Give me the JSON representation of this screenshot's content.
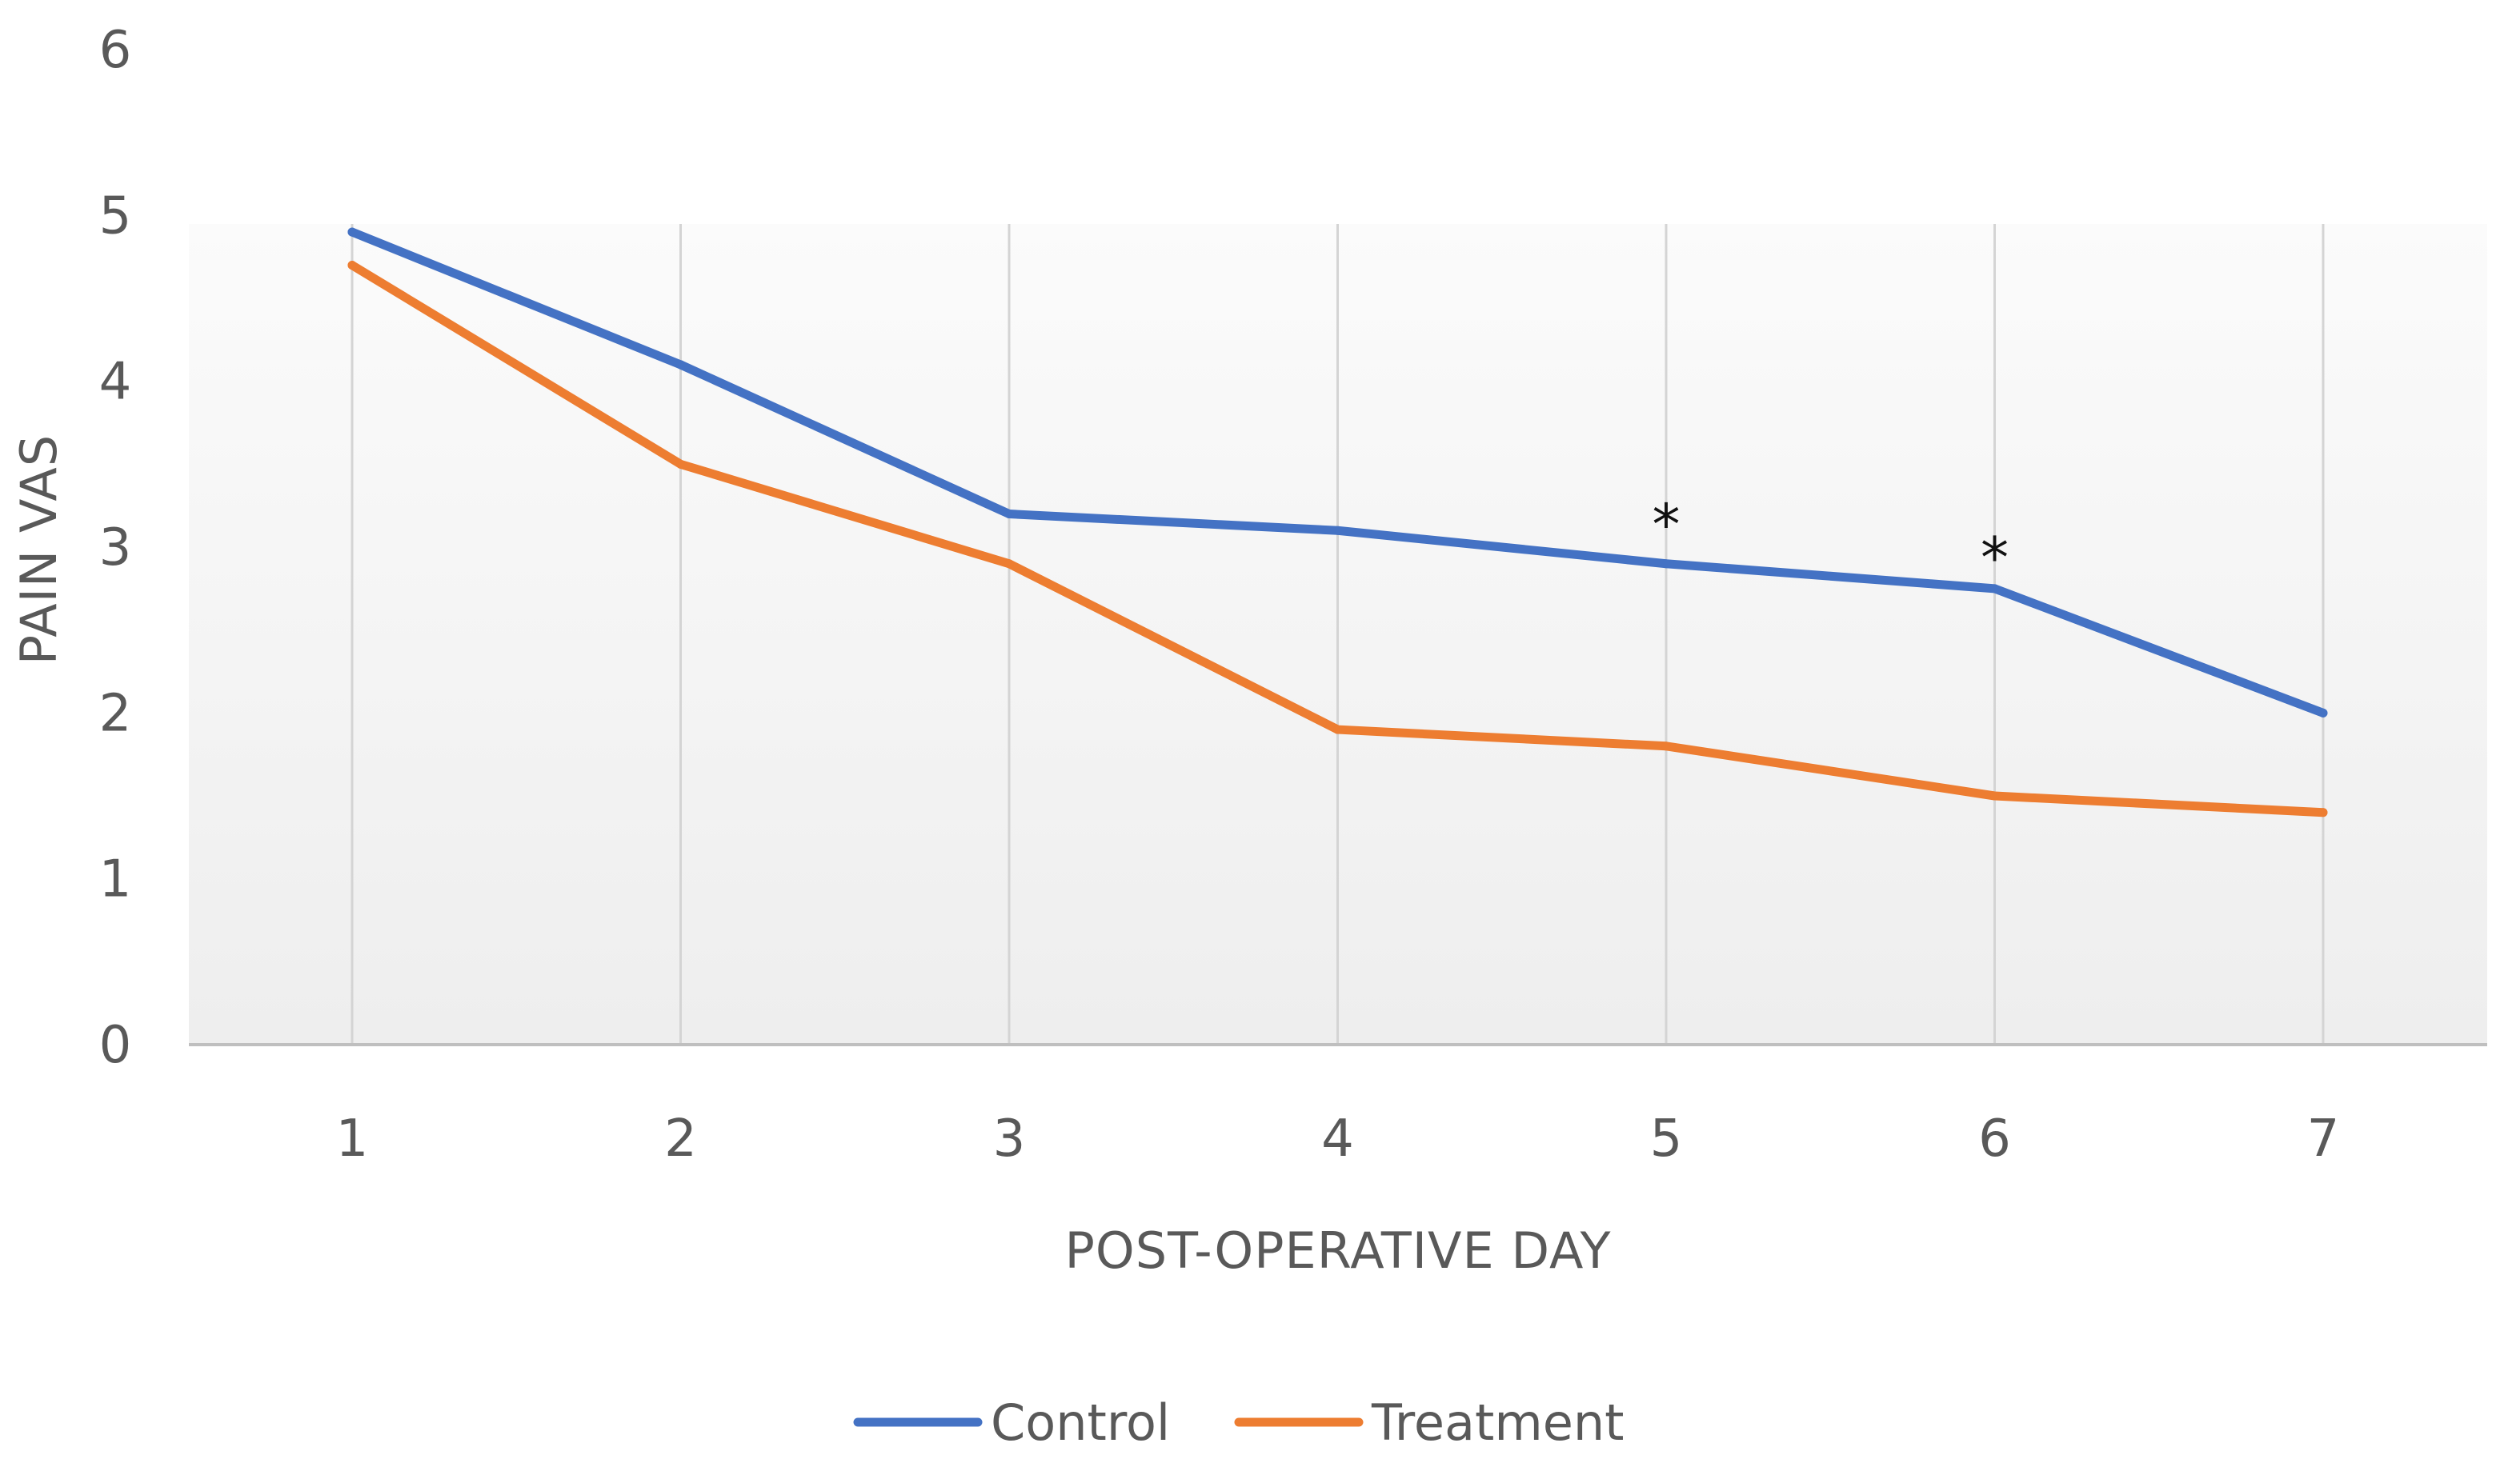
{
  "chart_data": {
    "type": "line",
    "title": "",
    "xlabel": "POST-OPERATIVE DAY",
    "ylabel": "PAIN VAS",
    "categories": [
      "1",
      "2",
      "3",
      "4",
      "5",
      "6",
      "7"
    ],
    "ylim": [
      0,
      6
    ],
    "yticks": [
      "0",
      "1",
      "2",
      "3",
      "4",
      "5",
      "6"
    ],
    "grid": "vertical",
    "legend_position": "bottom-center",
    "series": [
      {
        "name": "Control",
        "color": "#4472C4",
        "values": [
          4.9,
          4.1,
          3.2,
          3.1,
          2.9,
          2.75,
          2.0
        ]
      },
      {
        "name": "Treatment",
        "color": "#ED7D31",
        "values": [
          4.7,
          3.5,
          2.9,
          1.9,
          1.8,
          1.5,
          1.4
        ]
      }
    ],
    "annotations": [
      {
        "category": "5",
        "text": "*",
        "value": 3.25
      },
      {
        "category": "6",
        "text": "*",
        "value": 3.05
      }
    ]
  }
}
